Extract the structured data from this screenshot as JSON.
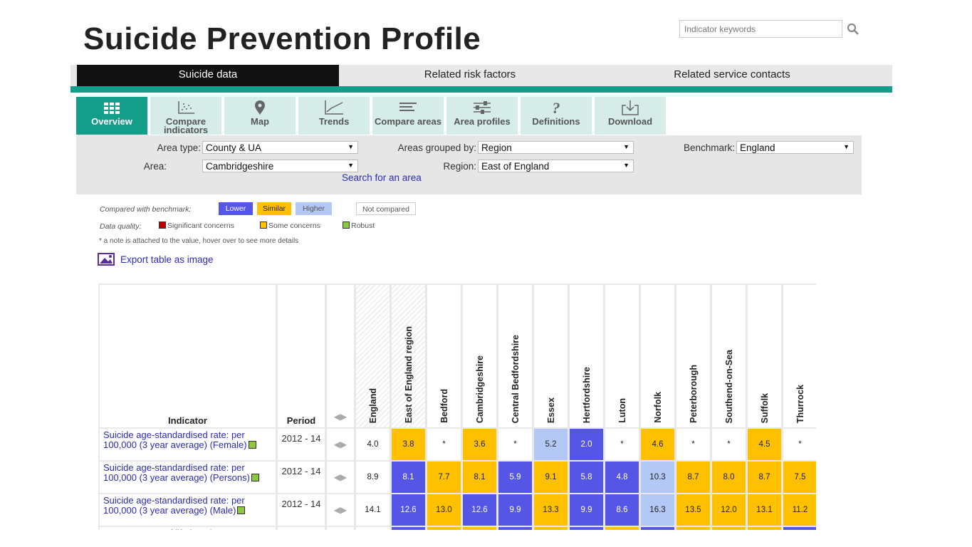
{
  "header": {
    "title": "Suicide Prevention Profile",
    "search_placeholder": "Indicator keywords"
  },
  "main_tabs": [
    {
      "label": "Suicide data"
    },
    {
      "label": "Related risk factors"
    },
    {
      "label": "Related service contacts"
    }
  ],
  "sub_tabs": [
    {
      "label": "Overview",
      "icon": "overview-grid-icon"
    },
    {
      "label": "Compare indicators",
      "icon": "scatter-icon"
    },
    {
      "label": "Map",
      "icon": "map-pin-icon"
    },
    {
      "label": "Trends",
      "icon": "trend-line-icon"
    },
    {
      "label": "Compare areas",
      "icon": "bars-icon"
    },
    {
      "label": "Area profiles",
      "icon": "sliders-icon"
    },
    {
      "label": "Definitions",
      "icon": "question-icon"
    },
    {
      "label": "Download",
      "icon": "download-icon"
    }
  ],
  "filters": {
    "area_type_label": "Area type:",
    "area_type_value": "County & UA",
    "area_label": "Area:",
    "area_value": "Cambridgeshire",
    "search_area": "Search for an area",
    "grouped_by_label": "Areas grouped by:",
    "grouped_by_value": "Region",
    "region_label": "Region:",
    "region_value": "East of England",
    "benchmark_label": "Benchmark:",
    "benchmark_value": "England"
  },
  "legend": {
    "compared_label": "Compared with benchmark:",
    "lower": "Lower",
    "similar": "Similar",
    "higher": "Higher",
    "not_compared": "Not compared",
    "quality_label": "Data quality:",
    "significant": "Significant concerns",
    "some": "Some concerns",
    "robust": "Robust",
    "note": "a note is attached to the value, hover over to see more details",
    "colors": {
      "lower": "#5555e6",
      "similar": "#ffc000",
      "higher": "#b3c8f5",
      "significant": "#c00000",
      "some": "#ffc000",
      "robust": "#8dc641"
    }
  },
  "export_label": "Export table as image",
  "table": {
    "indicator_header": "Indicator",
    "period_header": "Period",
    "areas": [
      "England",
      "East of England region",
      "Bedford",
      "Cambridgeshire",
      "Central Bedfordshire",
      "Essex",
      "Hertfordshire",
      "Luton",
      "Norfolk",
      "Peterborough",
      "Southend-on-Sea",
      "Suffolk",
      "Thurrock"
    ],
    "rows": [
      {
        "indicator": "Suicide age-standardised rate: per 100,000 (3 year average) (Female)",
        "period": "2012 - 14",
        "values": [
          "4.0",
          "3.8",
          "*",
          "3.6",
          "*",
          "5.2",
          "2.0",
          "*",
          "4.6",
          "*",
          "*",
          "4.5",
          "*"
        ],
        "status": [
          "plain",
          "similar",
          "plain",
          "similar",
          "plain",
          "higher",
          "lower",
          "plain",
          "similar",
          "plain",
          "plain",
          "similar",
          "plain"
        ]
      },
      {
        "indicator": "Suicide age-standardised rate: per 100,000 (3 year average) (Persons)",
        "period": "2012 - 14",
        "values": [
          "8.9",
          "8.1",
          "7.7",
          "8.1",
          "5.9",
          "9.1",
          "5.8",
          "4.8",
          "10.3",
          "8.7",
          "8.0",
          "8.7",
          "7.5"
        ],
        "status": [
          "plain",
          "lower",
          "similar",
          "similar",
          "lower",
          "similar",
          "lower",
          "lower",
          "higher",
          "similar",
          "similar",
          "similar",
          "similar"
        ]
      },
      {
        "indicator": "Suicide age-standardised rate: per 100,000 (3 year average) (Male)",
        "period": "2012 - 14",
        "values": [
          "14.1",
          "12.6",
          "13.0",
          "12.6",
          "9.9",
          "13.3",
          "9.9",
          "8.6",
          "16.3",
          "13.5",
          "12.0",
          "13.1",
          "11.2"
        ],
        "status": [
          "plain",
          "lower",
          "similar",
          "lower",
          "lower",
          "similar",
          "lower",
          "lower",
          "higher",
          "similar",
          "similar",
          "similar",
          "similar"
        ]
      },
      {
        "indicator": "Persons years of life lost due to",
        "period": "",
        "values": [
          "",
          "",
          "",
          "",
          "",
          "",
          "",
          "",
          "",
          "",
          "",
          "",
          ""
        ],
        "status": [
          "plain",
          "lower",
          "similar",
          "similar",
          "lower",
          "similar",
          "lower",
          "similar",
          "lower",
          "similar",
          "similar",
          "similar",
          "lower"
        ]
      }
    ]
  }
}
